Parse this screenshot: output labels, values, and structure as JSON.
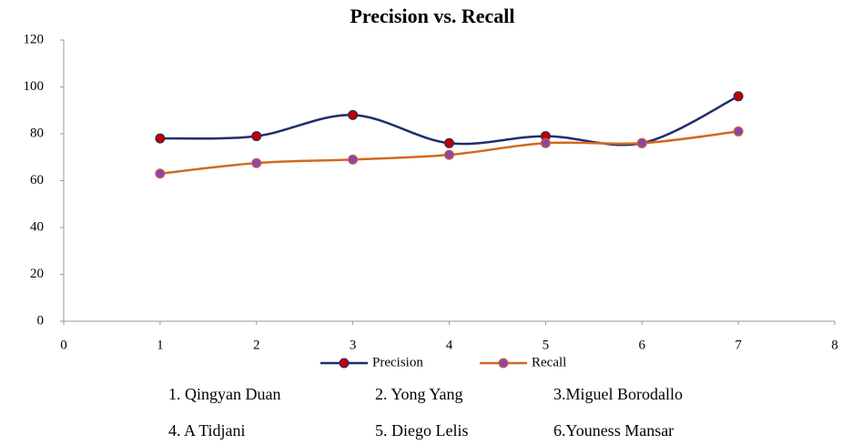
{
  "chart_data": {
    "type": "line",
    "title": "Precision vs. Recall",
    "x": [
      1,
      2,
      3,
      4,
      5,
      6,
      7
    ],
    "series": [
      {
        "name": "Precision",
        "color": "#1f2d6e",
        "marker_color": "#c00000",
        "values": [
          78,
          79,
          88,
          76,
          79,
          76,
          96
        ]
      },
      {
        "name": "Recall",
        "color": "#d2691e",
        "marker_color": "#8e44ad",
        "values": [
          63,
          67.5,
          69,
          71,
          76,
          76,
          81
        ]
      }
    ],
    "xlim": [
      0,
      8
    ],
    "xticks": [
      0,
      1,
      2,
      3,
      4,
      5,
      6,
      7,
      8
    ],
    "ylim": [
      0,
      120
    ],
    "yticks": [
      0,
      20,
      40,
      60,
      80,
      100,
      120
    ],
    "smooth": true,
    "grid": false,
    "legend": "bottom",
    "annotations": [
      "1. Qingyan Duan",
      "2. Yong Yang",
      "3.Miguel Borodallo",
      "4. A Tidjani",
      "5. Diego Lelis",
      "6.Youness Mansar"
    ]
  }
}
